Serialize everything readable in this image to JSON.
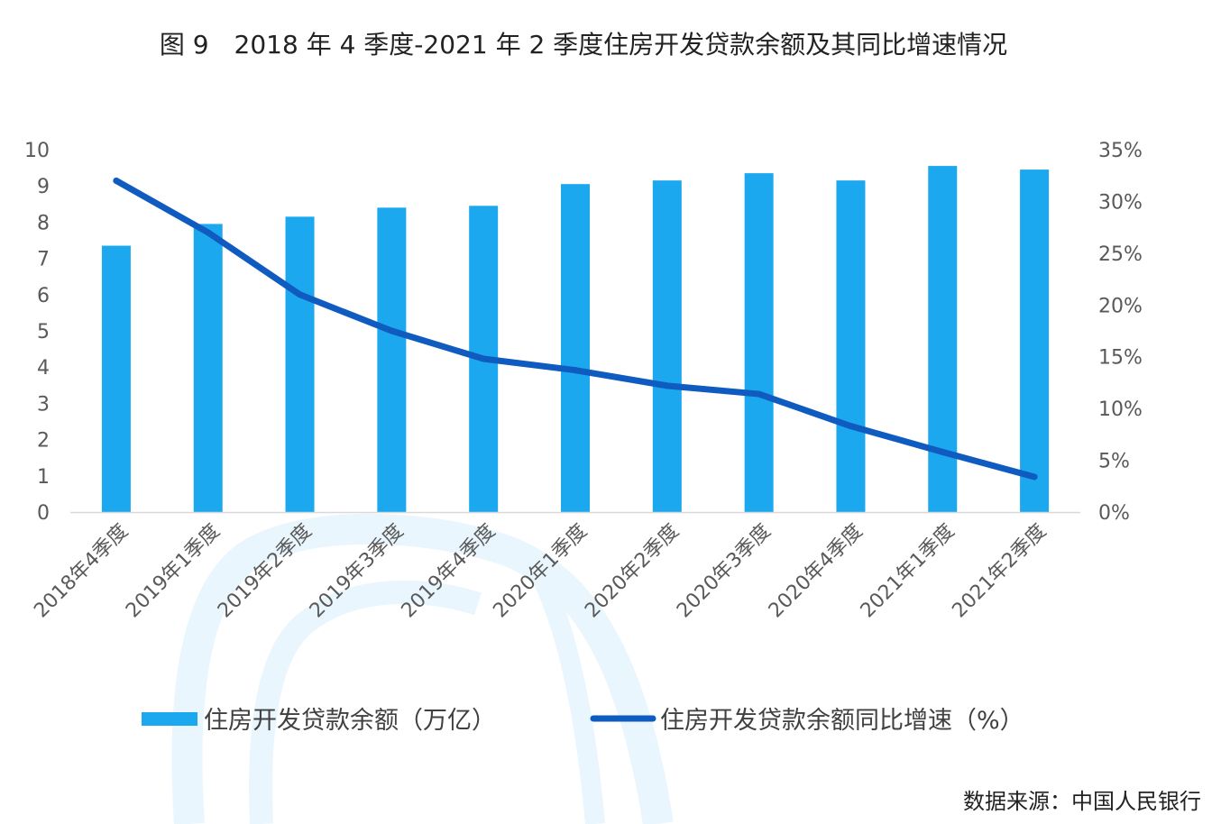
{
  "title": "图 9　2018 年 4 季度-2021 年 2 季度住房开发贷款余额及其同比增速情况",
  "source": "数据来源：中国人民银行",
  "chart_data": {
    "type": "bar",
    "categories": [
      "2018年4季度",
      "2019年1季度",
      "2019年2季度",
      "2019年3季度",
      "2019年4季度",
      "2020年1季度",
      "2020年2季度",
      "2020年3季度",
      "2020年4季度",
      "2021年1季度",
      "2021年2季度"
    ],
    "series": [
      {
        "name": "住房开发贷款余额（万亿）",
        "type": "bar",
        "axis": "left",
        "color": "#1BA8EE",
        "values": [
          7.35,
          7.95,
          8.15,
          8.4,
          8.45,
          9.05,
          9.15,
          9.35,
          9.15,
          9.55,
          9.45
        ]
      },
      {
        "name": "住房开发贷款余额同比增速（%）",
        "type": "line",
        "axis": "right",
        "color": "#0F5BBF",
        "values": [
          32.0,
          27.0,
          21.0,
          17.5,
          14.8,
          13.7,
          12.2,
          11.4,
          8.3,
          5.8,
          3.4
        ]
      }
    ],
    "y_left": {
      "ylim": [
        0,
        10
      ],
      "ticks": [
        "0",
        "1",
        "2",
        "3",
        "4",
        "5",
        "6",
        "7",
        "8",
        "9",
        "10"
      ]
    },
    "y_right": {
      "ylim": [
        0,
        35
      ],
      "ticks": [
        "0%",
        "5%",
        "10%",
        "15%",
        "20%",
        "25%",
        "30%",
        "35%"
      ]
    },
    "grid": false,
    "legend": "bottom"
  }
}
